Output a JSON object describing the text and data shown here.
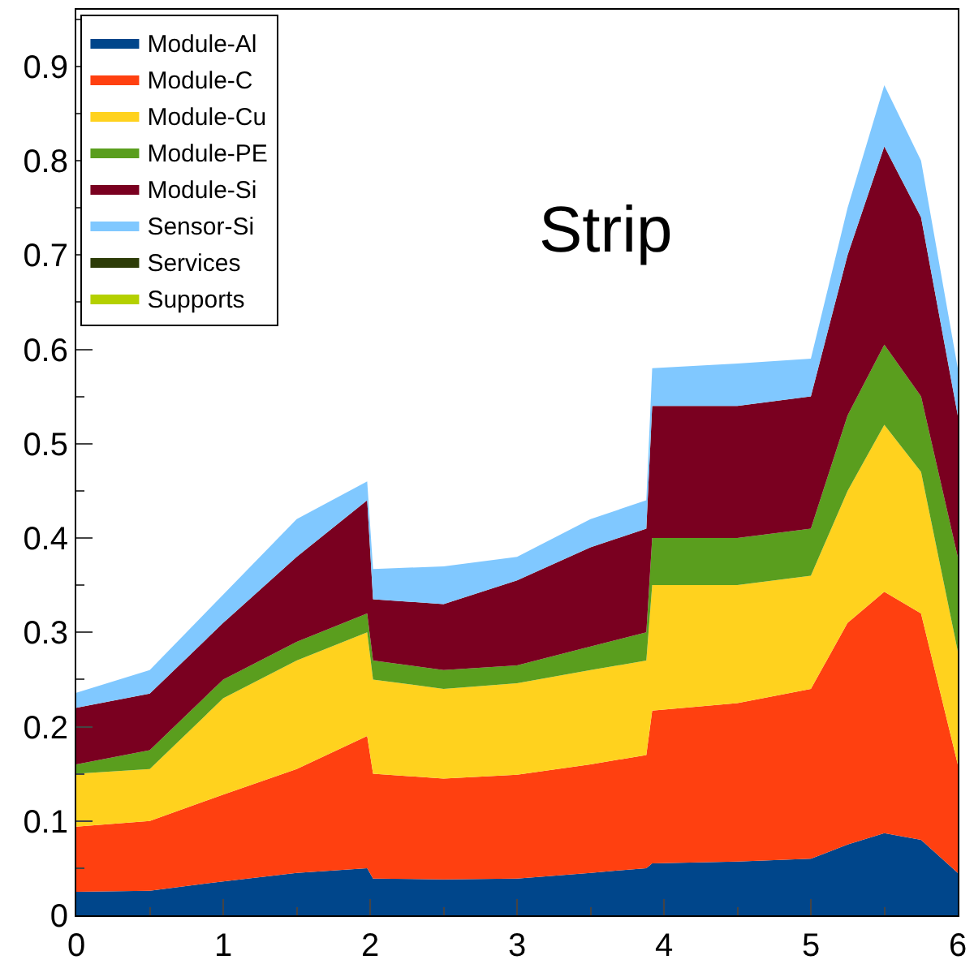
{
  "chart_data": {
    "type": "area",
    "stacked": true,
    "annotations": [
      "Strip"
    ],
    "x": [
      0,
      0.5,
      1,
      1.5,
      1.98,
      2.02,
      2.5,
      3,
      3.5,
      3.88,
      3.92,
      4.5,
      5,
      5.25,
      5.5,
      5.75,
      6
    ],
    "series": [
      {
        "name": "Module-Al",
        "color": "#00468b",
        "values": [
          0.025,
          0.026,
          0.036,
          0.045,
          0.05,
          0.039,
          0.038,
          0.039,
          0.045,
          0.05,
          0.055,
          0.057,
          0.06,
          0.075,
          0.087,
          0.08,
          0.045
        ]
      },
      {
        "name": "Module-C",
        "color": "#ff4010",
        "values": [
          0.069,
          0.074,
          0.092,
          0.11,
          0.14,
          0.111,
          0.107,
          0.11,
          0.115,
          0.12,
          0.162,
          0.168,
          0.18,
          0.235,
          0.256,
          0.24,
          0.115
        ]
      },
      {
        "name": "Module-Cu",
        "color": "#ffd21e",
        "values": [
          0.056,
          0.055,
          0.102,
          0.115,
          0.11,
          0.1,
          0.095,
          0.097,
          0.1,
          0.1,
          0.133,
          0.125,
          0.12,
          0.14,
          0.177,
          0.15,
          0.12
        ]
      },
      {
        "name": "Module-PE",
        "color": "#5a9e1e",
        "values": [
          0.01,
          0.02,
          0.02,
          0.02,
          0.02,
          0.02,
          0.02,
          0.019,
          0.025,
          0.03,
          0.05,
          0.05,
          0.05,
          0.08,
          0.085,
          0.08,
          0.1
        ]
      },
      {
        "name": "Module-Si",
        "color": "#7a0020",
        "values": [
          0.06,
          0.06,
          0.06,
          0.09,
          0.12,
          0.065,
          0.07,
          0.09,
          0.105,
          0.11,
          0.14,
          0.14,
          0.14,
          0.17,
          0.21,
          0.19,
          0.15
        ]
      },
      {
        "name": "Sensor-Si",
        "color": "#80c8ff",
        "values": [
          0.016,
          0.025,
          0.03,
          0.04,
          0.02,
          0.032,
          0.04,
          0.025,
          0.03,
          0.03,
          0.04,
          0.045,
          0.04,
          0.05,
          0.065,
          0.06,
          0.05
        ]
      },
      {
        "name": "Services",
        "color": "#2d3c08",
        "values": [
          null,
          null,
          null,
          null,
          null,
          null,
          null,
          null,
          null,
          null,
          null,
          null,
          null,
          null,
          null,
          null,
          null
        ]
      },
      {
        "name": "Supports",
        "color": "#b4d000",
        "values": [
          null,
          null,
          null,
          null,
          null,
          null,
          null,
          null,
          null,
          null,
          null,
          null,
          null,
          null,
          null,
          null,
          null
        ]
      }
    ],
    "xlim": [
      0,
      6
    ],
    "xticks": [
      0,
      1,
      2,
      3,
      4,
      5,
      6
    ],
    "ylim": [
      0,
      0.96
    ],
    "yticks": [
      0,
      0.1,
      0.2,
      0.3,
      0.4,
      0.5,
      0.6,
      0.7,
      0.8,
      0.9
    ],
    "grid": false,
    "legend": "top left"
  }
}
